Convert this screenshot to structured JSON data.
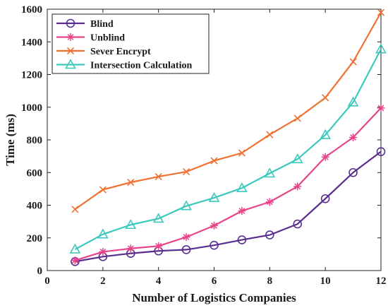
{
  "chart_data": {
    "type": "line",
    "xlabel": "Number of Logistics Companies",
    "ylabel": "Time (ms)",
    "xlim": [
      0,
      12
    ],
    "ylim": [
      0,
      1600
    ],
    "xticks": [
      0,
      2,
      4,
      6,
      8,
      10,
      12
    ],
    "yticks": [
      0,
      200,
      400,
      600,
      800,
      1000,
      1200,
      1400,
      1600
    ],
    "grid": false,
    "legend_position": "top-left",
    "x": [
      1,
      2,
      3,
      4,
      5,
      6,
      7,
      8,
      9,
      10,
      11,
      12
    ],
    "series": [
      {
        "name": "Blind",
        "marker": "circle",
        "color": "#5a2d91",
        "values": [
          55,
          85,
          105,
          120,
          128,
          155,
          188,
          218,
          285,
          440,
          600,
          728
        ]
      },
      {
        "name": "Unblind",
        "marker": "asterisk",
        "color": "#e8448a",
        "values": [
          62,
          115,
          135,
          150,
          205,
          275,
          365,
          420,
          515,
          695,
          815,
          995
        ]
      },
      {
        "name": "Sever Encrypt",
        "marker": "x",
        "color": "#f07030",
        "values": [
          375,
          495,
          540,
          575,
          605,
          672,
          720,
          832,
          932,
          1058,
          1278,
          1580
        ]
      },
      {
        "name": "Intersection Calculation",
        "marker": "triangle",
        "color": "#3cc8bc",
        "values": [
          130,
          222,
          280,
          318,
          395,
          445,
          505,
          595,
          682,
          830,
          1030,
          1355
        ]
      }
    ]
  }
}
